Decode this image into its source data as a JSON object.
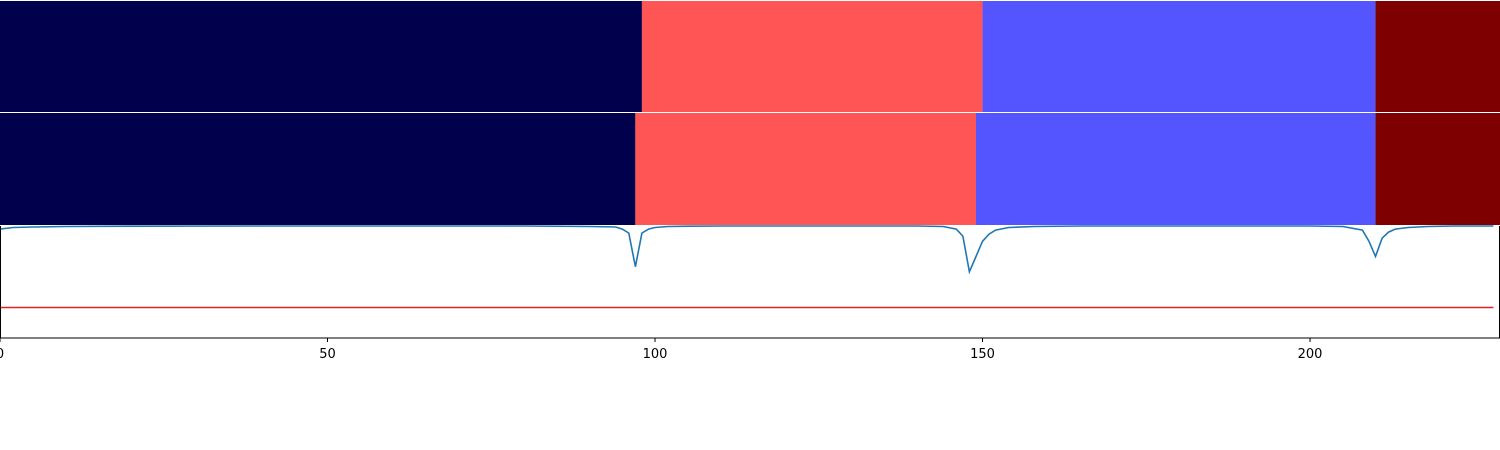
{
  "chart_data": [
    {
      "type": "heatmap",
      "name": "segmentation-track-1",
      "segments": [
        {
          "start": 0,
          "end": 98,
          "color": "#00004c"
        },
        {
          "start": 98,
          "end": 150,
          "color": "#ff5555"
        },
        {
          "start": 150,
          "end": 210,
          "color": "#5555ff"
        },
        {
          "start": 210,
          "end": 229,
          "color": "#7f0000"
        }
      ]
    },
    {
      "type": "heatmap",
      "name": "segmentation-track-2",
      "segments": [
        {
          "start": 0,
          "end": 97,
          "color": "#00004c"
        },
        {
          "start": 97,
          "end": 149,
          "color": "#ff5555"
        },
        {
          "start": 149,
          "end": 210,
          "color": "#5555ff"
        },
        {
          "start": 210,
          "end": 229,
          "color": "#7f0000"
        }
      ]
    },
    {
      "type": "line",
      "series": [
        {
          "color": "#1f77b4",
          "x": [
            0,
            2,
            5,
            10,
            20,
            40,
            60,
            80,
            90,
            94,
            95,
            96,
            97,
            98,
            99,
            100,
            102,
            105,
            110,
            120,
            140,
            144,
            146,
            147,
            148,
            149,
            150,
            151,
            152,
            154,
            158,
            165,
            180,
            200,
            205,
            208,
            209,
            210,
            211,
            212,
            213,
            215,
            218,
            222,
            228
          ],
          "y": [
            0.97,
            0.985,
            0.99,
            0.995,
            0.998,
            1.0,
            1.0,
            1.0,
            0.995,
            0.99,
            0.97,
            0.93,
            0.6,
            0.93,
            0.97,
            0.985,
            0.995,
            0.998,
            1.0,
            1.0,
            1.0,
            0.995,
            0.97,
            0.9,
            0.55,
            0.7,
            0.85,
            0.92,
            0.96,
            0.985,
            0.995,
            1.0,
            1.0,
            1.0,
            0.995,
            0.96,
            0.85,
            0.7,
            0.88,
            0.94,
            0.97,
            0.985,
            0.995,
            1.0,
            1.0
          ]
        },
        {
          "color": "#d62728",
          "x": [
            0,
            228
          ],
          "y": [
            0.2,
            0.2
          ]
        }
      ],
      "xlim": [
        0,
        229
      ],
      "ylim": [
        -0.1,
        1.0
      ],
      "xticks": [
        "0",
        "50",
        "100",
        "150",
        "200"
      ],
      "xtick_values": [
        0,
        50,
        100,
        150,
        200
      ],
      "grid": false
    }
  ]
}
